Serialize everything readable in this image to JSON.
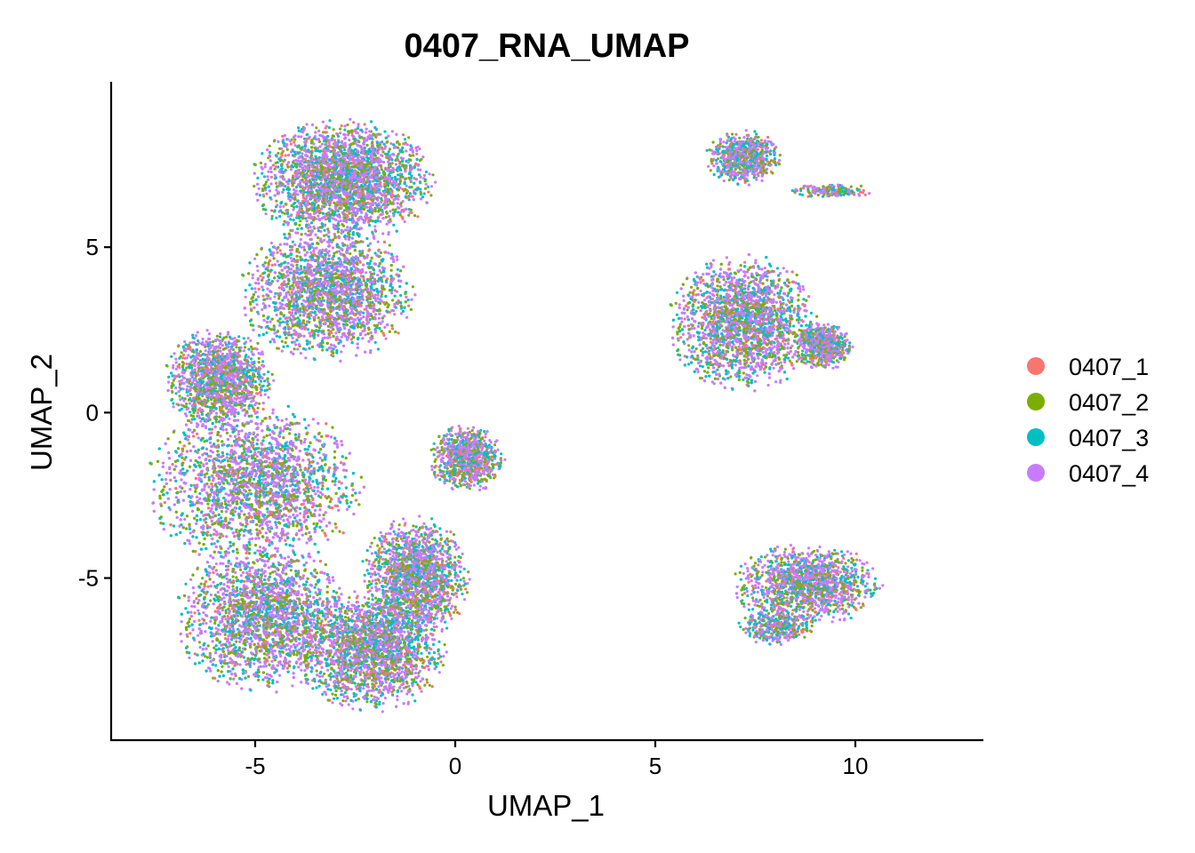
{
  "chart_data": {
    "type": "scatter",
    "title": "0407_RNA_UMAP",
    "xlabel": "UMAP_1",
    "ylabel": "UMAP_2",
    "xlim": [
      -8.6,
      13.2
    ],
    "ylim": [
      -9.9,
      10.0
    ],
    "x_ticks": [
      -5,
      0,
      5,
      10
    ],
    "x_tick_labels": [
      "-5",
      "0",
      "5",
      "10"
    ],
    "y_ticks": [
      -5,
      0,
      5
    ],
    "y_tick_labels": [
      "-5",
      "0",
      "5"
    ],
    "grid": false,
    "legend_position": "right",
    "series": [
      {
        "name": "0407_1",
        "color": "#F8766D"
      },
      {
        "name": "0407_2",
        "color": "#7CAE00"
      },
      {
        "name": "0407_3",
        "color": "#00BFC4"
      },
      {
        "name": "0407_4",
        "color": "#C77CFF"
      }
    ],
    "clusters": [
      {
        "cx": -2.8,
        "cy": 7.0,
        "rx": 2.2,
        "ry": 1.8,
        "weight": 1.3
      },
      {
        "cx": -3.2,
        "cy": 3.6,
        "rx": 2.1,
        "ry": 2.0,
        "weight": 1.3
      },
      {
        "cx": -5.9,
        "cy": 1.0,
        "rx": 1.3,
        "ry": 1.5,
        "weight": 0.6
      },
      {
        "cx": -5.0,
        "cy": -2.2,
        "rx": 2.6,
        "ry": 2.4,
        "weight": 1.6
      },
      {
        "cx": -4.8,
        "cy": -6.2,
        "rx": 2.1,
        "ry": 2.2,
        "weight": 1.3
      },
      {
        "cx": -2.1,
        "cy": -7.2,
        "rx": 1.8,
        "ry": 1.8,
        "weight": 1.0
      },
      {
        "cx": -1.0,
        "cy": -5.0,
        "rx": 1.3,
        "ry": 1.8,
        "weight": 0.7
      },
      {
        "cx": 0.3,
        "cy": -1.4,
        "rx": 0.9,
        "ry": 1.0,
        "weight": 0.35
      },
      {
        "cx": 7.2,
        "cy": 2.7,
        "rx": 1.8,
        "ry": 2.0,
        "weight": 1.3
      },
      {
        "cx": 9.2,
        "cy": 2.0,
        "rx": 0.7,
        "ry": 0.7,
        "weight": 0.25
      },
      {
        "cx": 7.2,
        "cy": 7.7,
        "rx": 0.9,
        "ry": 0.8,
        "weight": 0.3
      },
      {
        "cx": 9.4,
        "cy": 6.7,
        "rx": 1.0,
        "ry": 0.2,
        "weight": 0.08
      },
      {
        "cx": 8.8,
        "cy": -5.2,
        "rx": 1.8,
        "ry": 1.2,
        "weight": 0.6
      },
      {
        "cx": 8.0,
        "cy": -6.5,
        "rx": 0.9,
        "ry": 0.5,
        "weight": 0.15
      }
    ]
  }
}
